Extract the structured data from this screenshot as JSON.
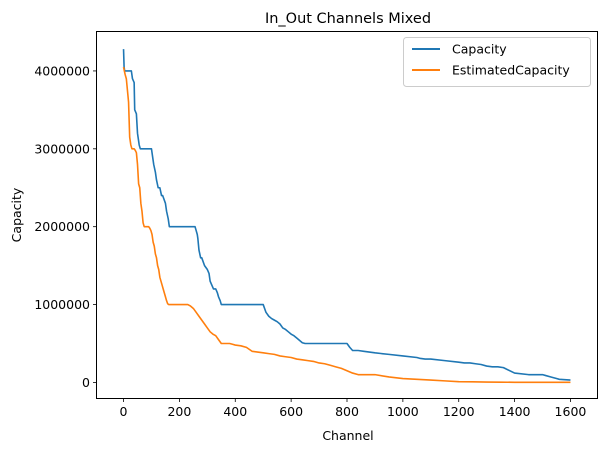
{
  "chart_data": {
    "type": "line",
    "title": "In_Out Channels Mixed",
    "xlabel": "Channel",
    "ylabel": "Capacity",
    "xlim": [
      -95,
      1695
    ],
    "ylim": [
      -200000,
      4500000
    ],
    "xticks": [
      0,
      200,
      400,
      600,
      800,
      1000,
      1200,
      1400,
      1600
    ],
    "yticks": [
      0,
      1000000,
      2000000,
      3000000,
      4000000
    ],
    "xtick_labels": [
      "0",
      "200",
      "400",
      "600",
      "800",
      "1000",
      "1200",
      "1400",
      "1600"
    ],
    "ytick_labels": [
      "0",
      "1000000",
      "2000000",
      "3000000",
      "4000000"
    ],
    "grid": false,
    "legend_position": "top-right",
    "series": [
      {
        "name": "Capacity",
        "color": "#1f77b4",
        "x": [
          0,
          2,
          4,
          28,
          32,
          38,
          40,
          46,
          50,
          52,
          56,
          60,
          64,
          100,
          104,
          108,
          114,
          118,
          124,
          130,
          136,
          140,
          150,
          154,
          160,
          164,
          170,
          174,
          180,
          256,
          260,
          264,
          266,
          270,
          276,
          280,
          290,
          300,
          306,
          310,
          316,
          322,
          330,
          336,
          340,
          346,
          350,
          360,
          366,
          374,
          380,
          390,
          400,
          500,
          510,
          520,
          530,
          540,
          550,
          560,
          570,
          580,
          590,
          600,
          610,
          620,
          630,
          640,
          650,
          800,
          810,
          820,
          840,
          860,
          900,
          950,
          1000,
          1050,
          1060,
          1080,
          1100,
          1150,
          1200,
          1220,
          1240,
          1260,
          1280,
          1300,
          1320,
          1340,
          1360,
          1400,
          1450,
          1480,
          1500,
          1510,
          1530,
          1550,
          1560,
          1600
        ],
        "y": [
          4280000,
          4050000,
          4000000,
          4000000,
          3900000,
          3850000,
          3500000,
          3450000,
          3200000,
          3150000,
          3050000,
          3000000,
          3000000,
          3000000,
          2900000,
          2800000,
          2700000,
          2600000,
          2500000,
          2500000,
          2400000,
          2400000,
          2300000,
          2200000,
          2100000,
          2000000,
          2000000,
          2000000,
          2000000,
          2000000,
          1950000,
          1900000,
          1850000,
          1700000,
          1600000,
          1600000,
          1500000,
          1450000,
          1400000,
          1300000,
          1250000,
          1200000,
          1200000,
          1150000,
          1100000,
          1050000,
          1000000,
          1000000,
          1000000,
          1000000,
          1000000,
          1000000,
          1000000,
          1000000,
          900000,
          850000,
          820000,
          800000,
          780000,
          750000,
          700000,
          680000,
          650000,
          620000,
          600000,
          570000,
          540000,
          510000,
          500000,
          500000,
          450000,
          410000,
          410000,
          400000,
          380000,
          360000,
          340000,
          320000,
          310000,
          300000,
          300000,
          280000,
          260000,
          250000,
          250000,
          240000,
          230000,
          210000,
          200000,
          200000,
          190000,
          120000,
          100000,
          100000,
          100000,
          90000,
          70000,
          50000,
          40000,
          30000
        ]
      },
      {
        "name": "EstimatedCapacity",
        "color": "#ff7f0e",
        "x": [
          0,
          3,
          6,
          10,
          14,
          18,
          22,
          26,
          30,
          34,
          38,
          42,
          46,
          50,
          54,
          58,
          62,
          66,
          70,
          74,
          78,
          82,
          86,
          90,
          94,
          98,
          102,
          106,
          110,
          114,
          118,
          122,
          126,
          130,
          134,
          138,
          142,
          146,
          150,
          154,
          158,
          162,
          166,
          170,
          174,
          180,
          190,
          200,
          210,
          220,
          230,
          240,
          250,
          260,
          270,
          280,
          290,
          300,
          310,
          320,
          330,
          340,
          350,
          360,
          370,
          380,
          390,
          400,
          420,
          440,
          460,
          480,
          500,
          520,
          540,
          560,
          580,
          600,
          620,
          640,
          660,
          680,
          700,
          720,
          740,
          760,
          780,
          800,
          820,
          840,
          860,
          880,
          900,
          950,
          1000,
          1050,
          1100,
          1150,
          1200,
          1250,
          1300,
          1350,
          1400,
          1450,
          1500,
          1550,
          1600
        ],
        "y": [
          4050000,
          4000000,
          3950000,
          3900000,
          3750000,
          3600000,
          3150000,
          3050000,
          3000000,
          3000000,
          3000000,
          2980000,
          2950000,
          2800000,
          2550000,
          2500000,
          2300000,
          2200000,
          2050000,
          2000000,
          2000000,
          2000000,
          2000000,
          2000000,
          1980000,
          1950000,
          1900000,
          1800000,
          1750000,
          1650000,
          1600000,
          1500000,
          1450000,
          1350000,
          1300000,
          1250000,
          1200000,
          1150000,
          1100000,
          1050000,
          1010000,
          1000000,
          1000000,
          1000000,
          1000000,
          1000000,
          1000000,
          1000000,
          1000000,
          1000000,
          1000000,
          980000,
          950000,
          900000,
          850000,
          800000,
          750000,
          700000,
          650000,
          620000,
          600000,
          550000,
          500000,
          500000,
          500000,
          500000,
          490000,
          480000,
          470000,
          450000,
          400000,
          390000,
          380000,
          370000,
          360000,
          340000,
          330000,
          320000,
          300000,
          290000,
          280000,
          270000,
          250000,
          240000,
          220000,
          200000,
          180000,
          150000,
          120000,
          100000,
          100000,
          100000,
          100000,
          70000,
          50000,
          40000,
          30000,
          20000,
          10000,
          8000,
          5000,
          3000,
          2000,
          1000,
          1000,
          1000,
          1000
        ]
      }
    ]
  }
}
